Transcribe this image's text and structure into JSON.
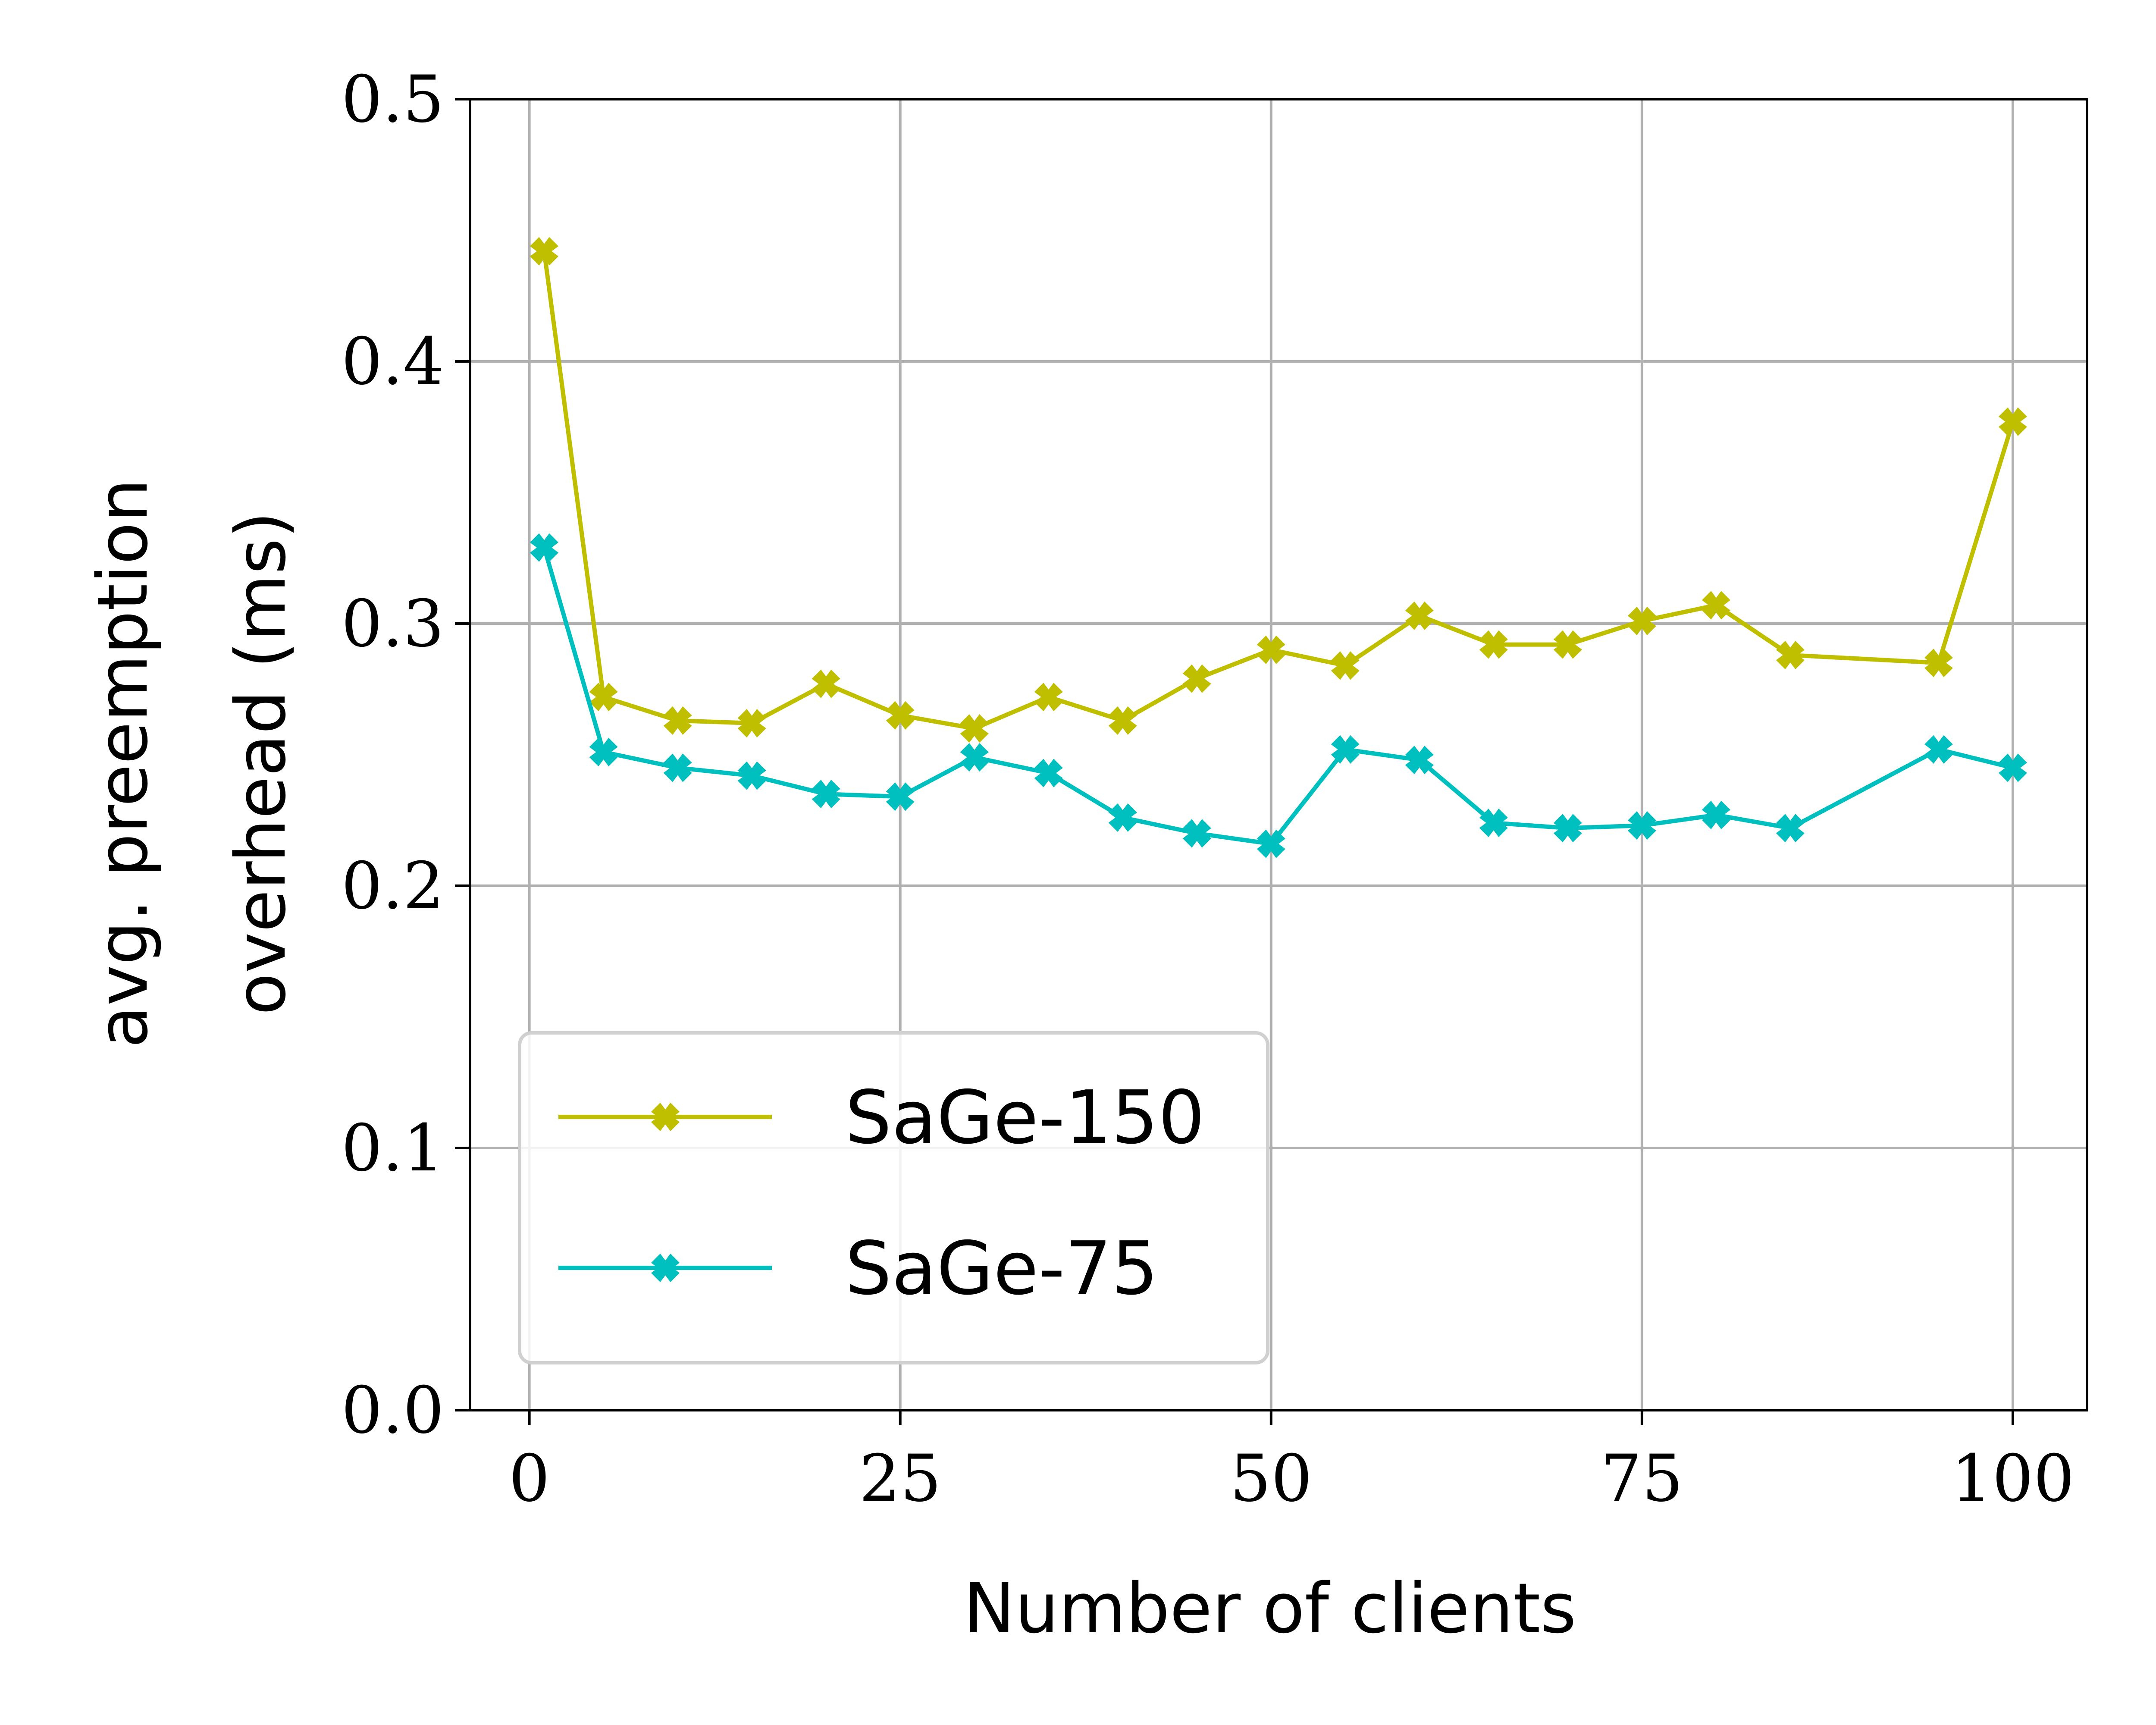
{
  "chart_data": {
    "type": "line",
    "title": "",
    "xlabel": "Number of clients",
    "ylabel_lines": [
      "avg. preemption",
      "overhead (ms)"
    ],
    "xlim": [
      -4,
      105
    ],
    "ylim": [
      0.0,
      0.5
    ],
    "xticks": [
      0,
      25,
      50,
      75,
      100
    ],
    "xtick_labels": [
      "0",
      "25",
      "50",
      "75",
      "100"
    ],
    "yticks": [
      0.0,
      0.1,
      0.2,
      0.3,
      0.4,
      0.5
    ],
    "ytick_labels": [
      "0.0",
      "0.1",
      "0.2",
      "0.3",
      "0.4",
      "0.5"
    ],
    "grid": true,
    "legend_placement": "lower-left",
    "series": [
      {
        "name": "SaGe-150",
        "color": "#bfbf00",
        "marker": "x-filled",
        "x": [
          1,
          5,
          10,
          15,
          20,
          25,
          30,
          35,
          40,
          45,
          50,
          55,
          60,
          65,
          70,
          75,
          80,
          85,
          95,
          100
        ],
        "y": [
          0.442,
          0.272,
          0.263,
          0.262,
          0.277,
          0.265,
          0.26,
          0.272,
          0.263,
          0.279,
          0.29,
          0.284,
          0.303,
          0.292,
          0.292,
          0.301,
          0.307,
          0.288,
          0.285,
          0.377
        ]
      },
      {
        "name": "SaGe-75",
        "color": "#00bfbf",
        "marker": "x-filled",
        "x": [
          1,
          5,
          10,
          15,
          20,
          25,
          30,
          35,
          40,
          45,
          50,
          55,
          60,
          65,
          70,
          75,
          80,
          85,
          95,
          100
        ],
        "y": [
          0.329,
          0.251,
          0.245,
          0.242,
          0.235,
          0.234,
          0.249,
          0.243,
          0.226,
          0.22,
          0.216,
          0.252,
          0.248,
          0.224,
          0.222,
          0.223,
          0.227,
          0.222,
          0.252,
          0.245
        ]
      }
    ]
  }
}
